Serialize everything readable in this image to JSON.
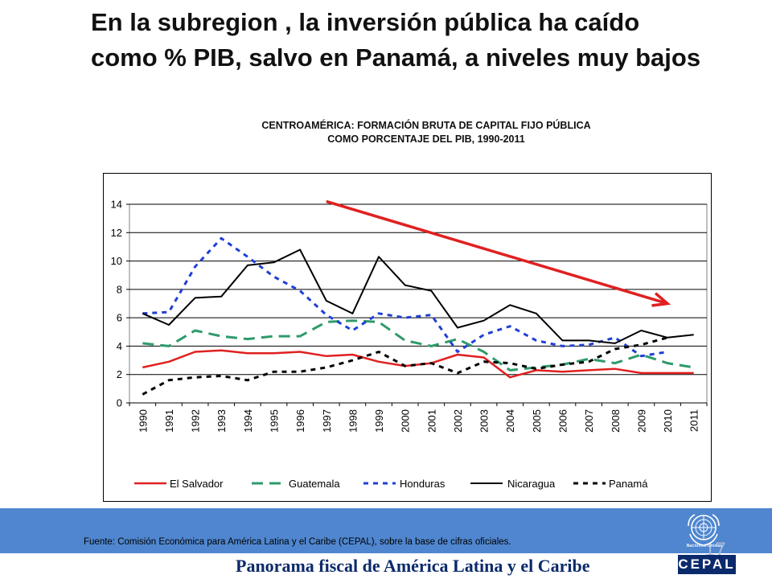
{
  "slide": {
    "title": "En la subregion , la inversión pública ha caído como % PIB, salvo en Panamá, a niveles muy bajos",
    "source": "Fuente: Comisión Económica para América Latina y el Caribe (CEPAL), sobre la base de cifras oficiales.",
    "footer_title": "Panorama fiscal de América Latina y el Caribe",
    "page_number": "17",
    "un_label": "Naciones Unidas",
    "cepal_logo": "CEPAL"
  },
  "chart_data": {
    "type": "line",
    "title_lines": [
      "CENTROAMÉRICA: FORMACIÓN BRUTA DE CAPITAL FIJO PÚBLICA",
      "COMO PORCENTAJE DEL PIB, 1990-2011"
    ],
    "xlabel": "",
    "ylabel": "",
    "ylim": [
      0,
      14
    ],
    "yticks": [
      "0",
      "2",
      "4",
      "6",
      "8",
      "10",
      "12",
      "14"
    ],
    "categories": [
      "1990",
      "1991",
      "1992",
      "1993",
      "1994",
      "1995",
      "1996",
      "1997",
      "1998",
      "1999",
      "2000",
      "2001",
      "2002",
      "2003",
      "2004",
      "2005",
      "2006",
      "2007",
      "2008",
      "2009",
      "2010",
      "2011"
    ],
    "grid": "horizontal",
    "legend_position": "bottom",
    "series": [
      {
        "name": "El Salvador",
        "color": "#e02020",
        "dash": "solid",
        "width": 2.5,
        "values": [
          2.5,
          2.9,
          3.6,
          3.7,
          3.5,
          3.5,
          3.6,
          3.3,
          3.4,
          2.9,
          2.6,
          2.8,
          3.4,
          3.2,
          1.8,
          2.3,
          2.2,
          2.3,
          2.4,
          2.1,
          2.1,
          2.1
        ]
      },
      {
        "name": "Guatemala",
        "color": "#2f9a6b",
        "dash": "long",
        "width": 3,
        "values": [
          4.2,
          4.0,
          5.1,
          4.7,
          4.5,
          4.7,
          4.7,
          5.7,
          5.8,
          5.7,
          4.4,
          4.0,
          4.5,
          3.6,
          2.3,
          2.5,
          2.7,
          3.1,
          2.8,
          3.4,
          2.8,
          2.5
        ]
      },
      {
        "name": "Honduras",
        "color": "#1f3fd6",
        "dash": "short",
        "width": 3,
        "values": [
          6.3,
          6.4,
          9.6,
          11.6,
          10.3,
          8.9,
          7.9,
          6.2,
          5.1,
          6.3,
          6.0,
          6.2,
          3.6,
          4.8,
          5.4,
          4.4,
          4.0,
          4.1,
          4.6,
          3.3,
          3.6,
          null
        ]
      },
      {
        "name": "Nicaragua",
        "color": "#000000",
        "dash": "solid",
        "width": 2,
        "values": [
          6.3,
          5.5,
          7.4,
          7.5,
          9.7,
          9.9,
          10.8,
          7.2,
          6.3,
          10.3,
          8.3,
          7.9,
          5.3,
          5.8,
          6.9,
          6.3,
          4.4,
          4.4,
          4.2,
          5.1,
          4.6,
          4.8
        ]
      },
      {
        "name": "Panamá",
        "color": "#000000",
        "dash": "short",
        "width": 3,
        "values": [
          0.6,
          1.6,
          1.8,
          1.9,
          1.6,
          2.2,
          2.2,
          2.5,
          3.0,
          3.6,
          2.6,
          2.8,
          2.1,
          2.9,
          2.8,
          2.4,
          2.7,
          2.9,
          3.8,
          4.1,
          4.6,
          null
        ]
      }
    ],
    "annotations": [
      {
        "kind": "trend-arrow",
        "color": "#e02020",
        "from": {
          "x": "1997",
          "y": 14.2
        },
        "to": {
          "x": "2010",
          "y": 7.0
        }
      }
    ]
  }
}
